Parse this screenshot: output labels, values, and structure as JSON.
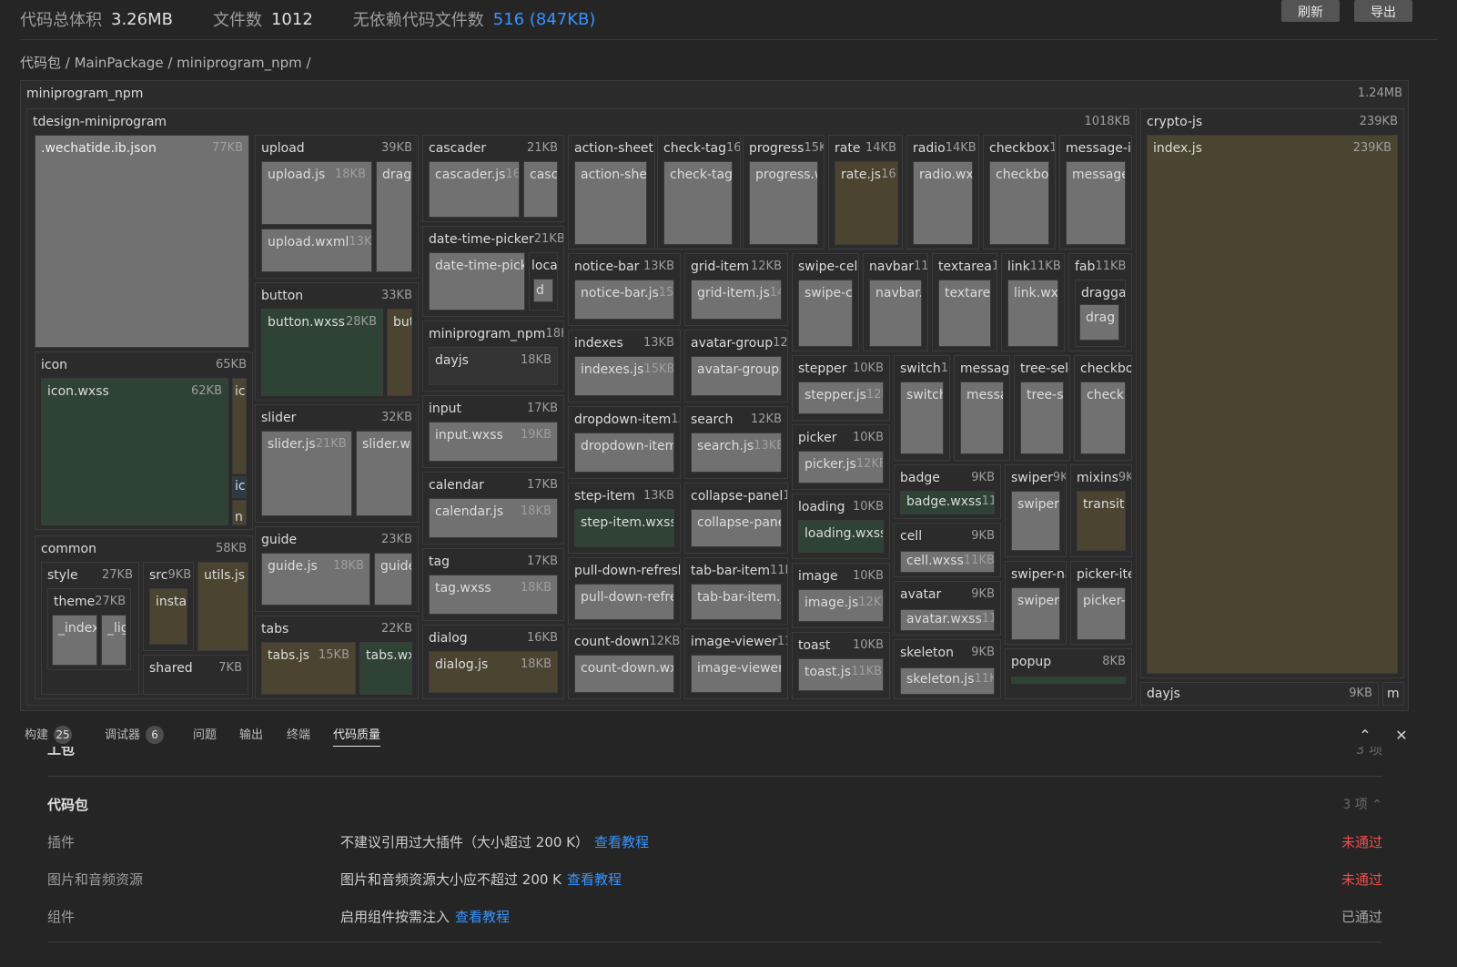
{
  "stats": {
    "total_size_label": "代码总体积",
    "total_size": "3.26MB",
    "file_count_label": "文件数",
    "file_count": "1012",
    "no_dep_label": "无依赖代码文件数",
    "no_dep_value": "516 (847KB)"
  },
  "buttons": {
    "refresh": "刷新",
    "export": "导出"
  },
  "breadcrumb": "代码包 / MainPackage / miniprogram_npm /",
  "treemap": {
    "root": {
      "name": "miniprogram_npm",
      "size": "1.24MB"
    },
    "tdesign": {
      "name": "tdesign-miniprogram",
      "size": "1018KB"
    },
    "crypto": {
      "name": "crypto-js",
      "size": "239KB",
      "child": "index.js",
      "child_size": "239KB"
    },
    "dayjs": "dayjs",
    "dayjs_size": "9KB",
    "m": "m",
    "wechatide": {
      "name": ".wechatide.ib.json",
      "size": "77KB"
    },
    "icon": {
      "name": "icon",
      "size": "65KB",
      "child": "icon.wxss",
      "child_size": "62KB",
      "t1": "ic",
      "t2": "ic",
      "t3": "n"
    },
    "common": {
      "name": "common",
      "size": "58KB",
      "style": "style",
      "style_size": "27KB",
      "theme": "theme",
      "theme_size": "27KB",
      "index": "_index",
      "lig": "_lig",
      "src": "src",
      "src_size": "9KB",
      "instar": "instar",
      "utils": "utils.js",
      "shared": "shared",
      "shared_size": "7KB"
    },
    "upload": {
      "name": "upload",
      "size": "39KB",
      "c1": "upload.js",
      "c1s": "18KB",
      "c2": "drag.",
      "c3": "upload.wxml",
      "c3s": "13KB"
    },
    "button": {
      "name": "button",
      "size": "33KB",
      "c1": "button.wxss",
      "c1s": "28KB",
      "c2": "but"
    },
    "slider": {
      "name": "slider",
      "size": "32KB",
      "c1": "slider.js",
      "c1s": "21KB",
      "c2": "slider.wx"
    },
    "guide": {
      "name": "guide",
      "size": "23KB",
      "c1": "guide.js",
      "c1s": "18KB",
      "c2": "guide"
    },
    "tabs": {
      "name": "tabs",
      "size": "22KB",
      "c1": "tabs.js",
      "c1s": "15KB",
      "c2": "tabs.wxs"
    },
    "cascader": {
      "name": "cascader",
      "size": "21KB",
      "c1": "cascader.js",
      "c1s": "16K",
      "c2": "casca"
    },
    "dtp": {
      "name": "date-time-picker",
      "size": "21KB",
      "c1": "date-time-picke",
      "c2": "loca",
      "c3": "d"
    },
    "mnpm": {
      "name": "miniprogram_npm",
      "size": "18KB",
      "c1": "dayjs",
      "c1s": "18KB"
    },
    "input": {
      "name": "input",
      "size": "17KB",
      "c1": "input.wxss",
      "c1s": "19KB"
    },
    "calendar": {
      "name": "calendar",
      "size": "17KB",
      "c1": "calendar.js",
      "c1s": "18KB"
    },
    "tag": {
      "name": "tag",
      "size": "17KB",
      "c1": "tag.wxss",
      "c1s": "18KB"
    },
    "dialog": {
      "name": "dialog",
      "size": "16KB",
      "c1": "dialog.js",
      "c1s": "18KB"
    },
    "r1": [
      {
        "name": "action-sheet",
        "size": "1",
        "c": "action-shee"
      },
      {
        "name": "check-tag",
        "size": "16k",
        "c": "check-tag.v"
      },
      {
        "name": "progress",
        "size": "15K",
        "c": "progress.w"
      },
      {
        "name": "rate",
        "size": "14KB",
        "c": "rate.js",
        "cs": "16K"
      },
      {
        "name": "radio",
        "size": "14KB",
        "c": "radio.wxs"
      },
      {
        "name": "checkbox",
        "size": "1",
        "c": "checkbox"
      },
      {
        "name": "message-it",
        "size": "",
        "c": "message"
      }
    ],
    "noticebar": {
      "name": "notice-bar",
      "size": "13KB",
      "c": "notice-bar.js",
      "cs": "15K"
    },
    "indexes": {
      "name": "indexes",
      "size": "13KB",
      "c": "indexes.js",
      "cs": "15KB"
    },
    "dropdown": {
      "name": "dropdown-item",
      "size": "13",
      "c": "dropdown-item."
    },
    "stepitem": {
      "name": "step-item",
      "size": "13KB",
      "c": "step-item.wxss",
      "cs": "1"
    },
    "pulldown": {
      "name": "pull-down-refresh",
      "c": "pull-down-refre"
    },
    "countdown": {
      "name": "count-down",
      "size": "12KB",
      "c": "count-down.wxs"
    },
    "griditem": {
      "name": "grid-item",
      "size": "12KB",
      "c": "grid-item.js",
      "cs": "14K"
    },
    "avatargroup": {
      "name": "avatar-group",
      "size": "12K",
      "c": "avatar-group.v"
    },
    "search": {
      "name": "search",
      "size": "12KB",
      "c": "search.js",
      "cs": "13KB"
    },
    "collapse": {
      "name": "collapse-panel",
      "size": "11",
      "c": "collapse-panel"
    },
    "tabbaritem": {
      "name": "tab-bar-item",
      "size": "11K",
      "c": "tab-bar-item.js"
    },
    "imageviewer": {
      "name": "image-viewer",
      "size": "11K",
      "c": "image-viewer.j"
    },
    "r2": [
      {
        "name": "swipe-cell",
        "size": "1",
        "c": "swipe-ce"
      },
      {
        "name": "navbar",
        "size": "11K",
        "c": "navbar.j"
      },
      {
        "name": "textarea",
        "size": "11",
        "c": "textarea"
      },
      {
        "name": "link",
        "size": "11KB",
        "c": "link.wxs"
      },
      {
        "name": "fab",
        "size": "11KB",
        "c": "draggal",
        "c2": "drag"
      }
    ],
    "stepper": {
      "name": "stepper",
      "size": "10KB",
      "c": "stepper.js",
      "cs": "12K"
    },
    "picker": {
      "name": "picker",
      "size": "10KB",
      "c": "picker.js",
      "cs": "12KB"
    },
    "loading": {
      "name": "loading",
      "size": "10KB",
      "c": "loading.wxss",
      "cs": "1"
    },
    "image": {
      "name": "image",
      "size": "10KB",
      "c": "image.js",
      "cs": "12KB"
    },
    "toast": {
      "name": "toast",
      "size": "10KB",
      "c": "toast.js",
      "cs": "11KB"
    },
    "r3": [
      {
        "name": "switch",
        "size": "10",
        "c": "switch."
      },
      {
        "name": "message",
        "size": "",
        "c": "messa"
      },
      {
        "name": "tree-sele",
        "size": "",
        "c": "tree-s"
      },
      {
        "name": "checkbo",
        "size": "",
        "c": "checkl"
      }
    ],
    "badge": {
      "name": "badge",
      "size": "9KB",
      "c": "badge.wxss",
      "cs": "11K"
    },
    "cell": {
      "name": "cell",
      "size": "9KB",
      "c": "cell.wxss",
      "cs": "11KB"
    },
    "avatar": {
      "name": "avatar",
      "size": "9KB",
      "c": "avatar.wxss",
      "cs": "11K"
    },
    "skeleton": {
      "name": "skeleton",
      "size": "9KB",
      "c": "skeleton.js",
      "cs": "11KB"
    },
    "swiper": {
      "name": "swiper",
      "size": "9KI",
      "c": "swiper."
    },
    "mixins": {
      "name": "mixins",
      "size": "9KI",
      "c": "transiti"
    },
    "swipernav": {
      "name": "swiper-na",
      "c": "swiper-"
    },
    "pickeritem": {
      "name": "picker-ite",
      "c": "picker-"
    },
    "popup": {
      "name": "popup",
      "size": "8KB"
    }
  },
  "panel": {
    "tabs": [
      {
        "label": "构建",
        "badge": "25"
      },
      {
        "label": "调试器",
        "badge": "6"
      },
      {
        "label": "问题"
      },
      {
        "label": "输出"
      },
      {
        "label": "终端"
      },
      {
        "label": "代码质量"
      }
    ],
    "prev_section_title": "工包",
    "prev_section_count": "3 项",
    "section_title": "代码包",
    "section_count": "3 项",
    "rows": [
      {
        "label": "插件",
        "desc": "不建议引用过大插件（大小超过 200 K）",
        "link": "查看教程",
        "status": "未通过"
      },
      {
        "label": "图片和音频资源",
        "desc": "图片和音频资源大小应不超过 200 K",
        "link": "查看教程",
        "status": "未通过"
      },
      {
        "label": "组件",
        "desc": "启用组件按需注入",
        "link": "查看教程",
        "status": "已通过"
      }
    ]
  }
}
